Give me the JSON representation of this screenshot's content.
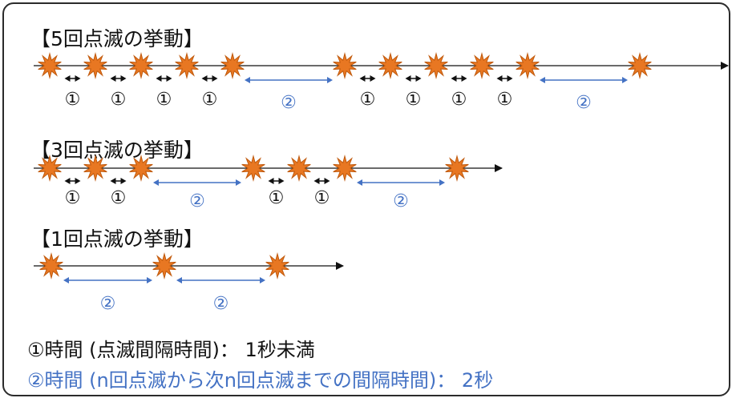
{
  "sections": [
    {
      "title": "【5回点滅の挙動】",
      "flashes": 5,
      "markers": [
        {
          "kind": "1",
          "label": "①"
        },
        {
          "kind": "1",
          "label": "①"
        },
        {
          "kind": "1",
          "label": "①"
        },
        {
          "kind": "1",
          "label": "①"
        },
        {
          "kind": "2",
          "label": "②"
        },
        {
          "kind": "1",
          "label": "①"
        },
        {
          "kind": "1",
          "label": "①"
        },
        {
          "kind": "1",
          "label": "①"
        },
        {
          "kind": "1",
          "label": "①"
        },
        {
          "kind": "2",
          "label": "②"
        }
      ]
    },
    {
      "title": "【3回点滅の挙動】",
      "flashes": 3,
      "markers": [
        {
          "kind": "1",
          "label": "①"
        },
        {
          "kind": "1",
          "label": "①"
        },
        {
          "kind": "2",
          "label": "②"
        },
        {
          "kind": "1",
          "label": "①"
        },
        {
          "kind": "1",
          "label": "①"
        },
        {
          "kind": "2",
          "label": "②"
        }
      ]
    },
    {
      "title": "【1回点滅の挙動】",
      "flashes": 1,
      "markers": [
        {
          "kind": "2",
          "label": "②"
        },
        {
          "kind": "2",
          "label": "②"
        }
      ]
    }
  ],
  "legend": {
    "line1": "①時間 (点滅間隔時間)： 1秒未満",
    "line2": "②時間 (n回点滅から次n回点滅までの間隔時間)： 2秒"
  },
  "colors": {
    "star_fill": "#e87722",
    "star_stroke": "#c05a0e",
    "interval1": "#111111",
    "interval2": "#4472c4",
    "timeline": "#111111"
  }
}
